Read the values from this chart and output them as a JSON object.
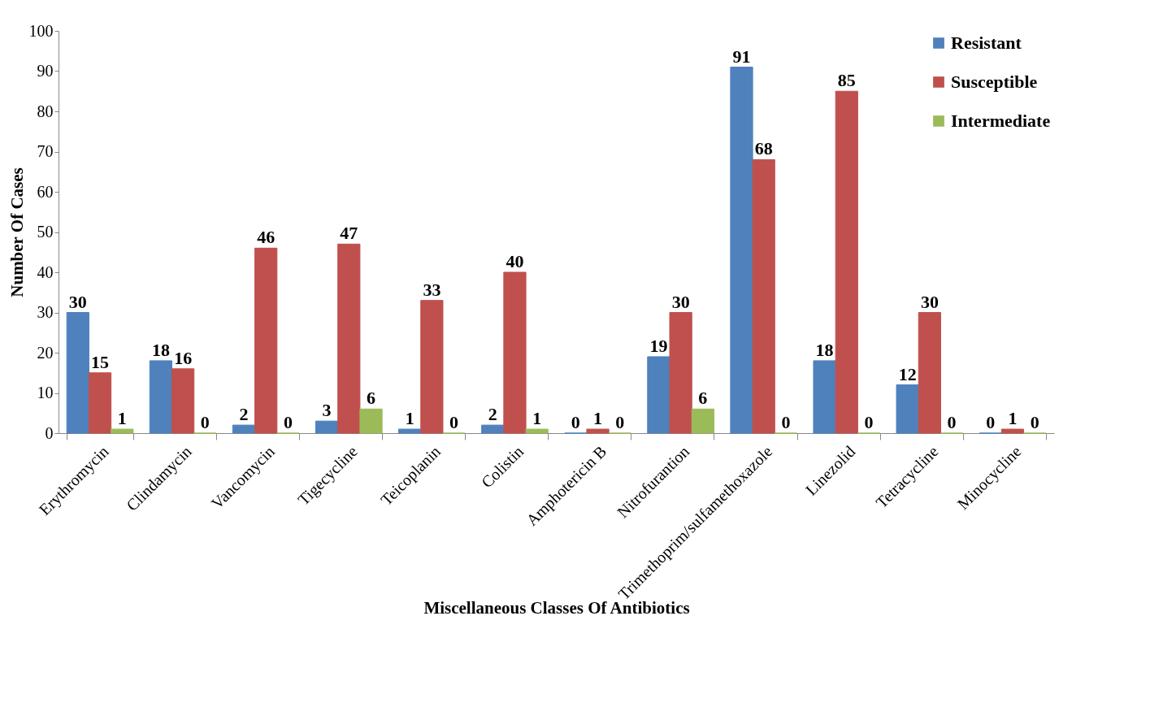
{
  "chart_data": {
    "type": "bar",
    "xlabel": "Miscellaneous Classes Of Antibiotics",
    "ylabel": "Number Of Cases",
    "categories": [
      "Erythromycin",
      "Clindamycin",
      "Vancomycin",
      "Tigecycline",
      "Teicoplanin",
      "Colistin",
      "Amphotericin B",
      "Nitrofurantion",
      "Trimethoprim/sulfamethoxazole",
      "Linezolid",
      "Tetracycline",
      "Minocycline"
    ],
    "series": [
      {
        "name": "Resistant",
        "color": "#4f81bd",
        "values": [
          30,
          18,
          2,
          3,
          1,
          2,
          0,
          19,
          91,
          18,
          12,
          0
        ]
      },
      {
        "name": "Susceptible",
        "color": "#c0504d",
        "values": [
          15,
          16,
          46,
          47,
          33,
          40,
          1,
          30,
          68,
          85,
          30,
          1
        ]
      },
      {
        "name": "Intermediate",
        "color": "#9bbb59",
        "values": [
          1,
          0,
          0,
          6,
          0,
          1,
          0,
          6,
          0,
          0,
          0,
          0
        ]
      }
    ],
    "ylim": [
      0,
      100
    ],
    "yticks": [
      0,
      10,
      20,
      30,
      40,
      50,
      60,
      70,
      80,
      90,
      100
    ],
    "grid": false,
    "legend": "top right",
    "data_labels": true
  }
}
